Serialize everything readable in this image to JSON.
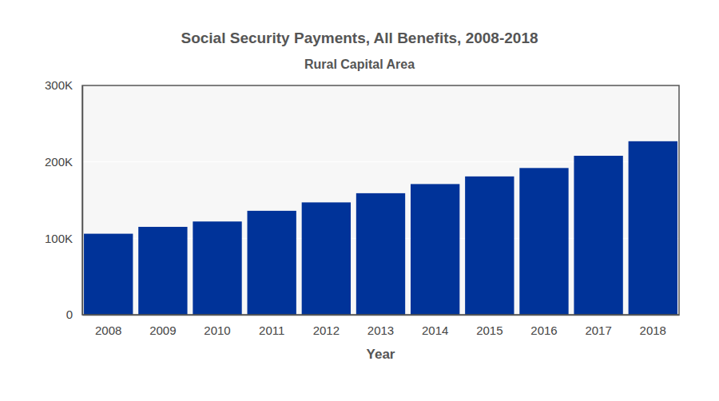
{
  "chart_data": {
    "type": "bar",
    "title": "Social Security Payments, All Benefits, 2008-2018",
    "subtitle": "Rural Capital Area",
    "x_label": "Year",
    "categories": [
      "2008",
      "2009",
      "2010",
      "2011",
      "2012",
      "2013",
      "2014",
      "2015",
      "2016",
      "2017",
      "2018"
    ],
    "values": [
      106000,
      115000,
      122000,
      136000,
      147000,
      159000,
      171000,
      181000,
      192000,
      208000,
      227000
    ],
    "color": "#003399",
    "ylim": [
      0,
      300000
    ],
    "yticks": [
      0,
      {
        "value": 100000,
        "label": "100K"
      },
      {
        "value": 200000,
        "label": "200K"
      },
      {
        "value": 300000,
        "label": "300K"
      }
    ],
    "grid": true
  }
}
